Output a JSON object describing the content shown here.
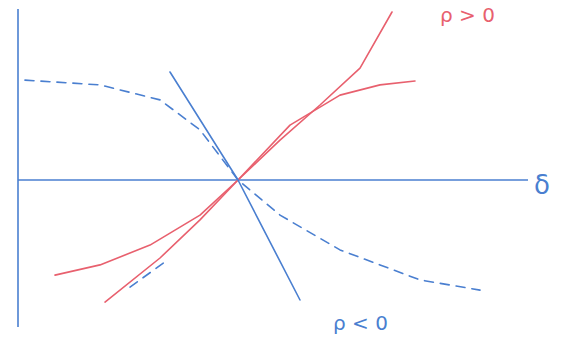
{
  "chart_data": {
    "type": "line",
    "x_label": "δ",
    "xlim": [
      0,
      10.2
    ],
    "ylim": [
      -4.9,
      5.7
    ],
    "tick_labels": false,
    "grid": false,
    "annotations": [
      {
        "text": "ρ > 0",
        "color": "#e8606e"
      },
      {
        "text": "ρ < 0",
        "color": "#4a7fd0"
      }
    ],
    "series": [
      {
        "color": "#e8606e",
        "line_style": "solid",
        "x": [
          0.74,
          1.64,
          2.64,
          3.64,
          4.4,
          5.24,
          6.04,
          6.84,
          7.48
        ],
        "values": [
          -3.17,
          -2.83,
          -2.17,
          -1.17,
          0,
          1.33,
          2.5,
          3.73,
          5.6
        ]
      },
      {
        "color": "#e8606e",
        "line_style": "solid",
        "x": [
          1.74,
          2.84,
          3.64,
          4.4,
          5.44,
          6.44,
          7.24,
          7.94
        ],
        "values": [
          -4.07,
          -2.6,
          -1.33,
          0,
          1.83,
          2.83,
          3.17,
          3.3
        ]
      },
      {
        "color": "#4a7fd0",
        "line_style": "solid",
        "x": [
          3.04,
          4.4,
          5.64
        ],
        "values": [
          3.6,
          0,
          -4.0
        ]
      },
      {
        "color": "#4a7fd0",
        "line_style": "dashed",
        "x": [
          0.14,
          1.64,
          2.84,
          3.64,
          4.4,
          5.24,
          6.44,
          8.04,
          9.24
        ],
        "values": [
          3.33,
          3.17,
          2.67,
          1.67,
          0,
          -1.17,
          -2.33,
          -3.33,
          -3.67
        ]
      },
      {
        "color": "#4a7fd0",
        "line_style": "dashed",
        "x": [
          2.24,
          2.94
        ],
        "values": [
          -3.57,
          -2.73
        ]
      }
    ]
  }
}
